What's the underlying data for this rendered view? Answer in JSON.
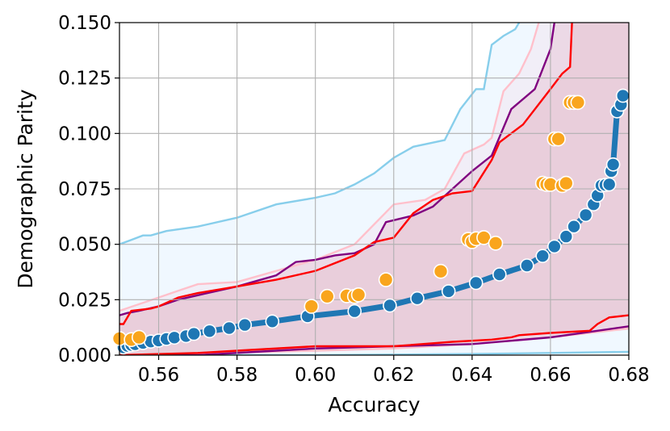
{
  "chart_data": {
    "type": "scatter",
    "title": "",
    "xlabel": "Accuracy",
    "ylabel": "Demographic Parity",
    "xlim": [
      0.55,
      0.68
    ],
    "ylim": [
      0.0,
      0.15
    ],
    "xticks": [
      "0.56",
      "0.58",
      "0.60",
      "0.62",
      "0.64",
      "0.66",
      "0.68"
    ],
    "yticks": [
      "0.000",
      "0.025",
      "0.050",
      "0.075",
      "0.100",
      "0.125",
      "0.150"
    ],
    "grid": true,
    "legend": "none",
    "bands": [
      {
        "color": "#87ceeb",
        "fill": "#f0f8ff",
        "upper": [
          [
            0.55,
            0.05
          ],
          [
            0.553,
            0.052
          ],
          [
            0.556,
            0.054
          ],
          [
            0.558,
            0.054
          ],
          [
            0.562,
            0.056
          ],
          [
            0.57,
            0.058
          ],
          [
            0.58,
            0.062
          ],
          [
            0.59,
            0.068
          ],
          [
            0.6,
            0.071
          ],
          [
            0.605,
            0.073
          ],
          [
            0.61,
            0.077
          ],
          [
            0.615,
            0.082
          ],
          [
            0.62,
            0.089
          ],
          [
            0.625,
            0.094
          ],
          [
            0.633,
            0.097
          ],
          [
            0.637,
            0.111
          ],
          [
            0.641,
            0.12
          ],
          [
            0.643,
            0.12
          ],
          [
            0.645,
            0.14
          ],
          [
            0.648,
            0.144
          ],
          [
            0.651,
            0.147
          ],
          [
            0.652,
            0.15
          ]
        ],
        "lower": [
          [
            0.55,
            0.0
          ],
          [
            0.6,
            0.0
          ],
          [
            0.64,
            0.0005
          ],
          [
            0.66,
            0.001
          ],
          [
            0.68,
            0.0015
          ]
        ]
      },
      {
        "color": "#ffc0cb",
        "fill": "#f3e6f0",
        "upper": [
          [
            0.55,
            0.02
          ],
          [
            0.56,
            0.026
          ],
          [
            0.565,
            0.029
          ],
          [
            0.57,
            0.032
          ],
          [
            0.58,
            0.033
          ],
          [
            0.59,
            0.038
          ],
          [
            0.6,
            0.043
          ],
          [
            0.61,
            0.05
          ],
          [
            0.62,
            0.068
          ],
          [
            0.628,
            0.07
          ],
          [
            0.633,
            0.075
          ],
          [
            0.638,
            0.091
          ],
          [
            0.643,
            0.095
          ],
          [
            0.645,
            0.098
          ],
          [
            0.648,
            0.119
          ],
          [
            0.652,
            0.127
          ],
          [
            0.655,
            0.138
          ],
          [
            0.657,
            0.15
          ]
        ],
        "lower": [
          [
            0.55,
            0.0
          ],
          [
            0.6,
            0.002
          ],
          [
            0.62,
            0.003
          ],
          [
            0.64,
            0.005
          ],
          [
            0.66,
            0.008
          ],
          [
            0.68,
            0.012
          ]
        ]
      },
      {
        "color": "#800080",
        "fill": "#e8c8d8",
        "upper": [
          [
            0.55,
            0.018
          ],
          [
            0.552,
            0.019
          ],
          [
            0.555,
            0.02
          ],
          [
            0.56,
            0.022
          ],
          [
            0.565,
            0.025
          ],
          [
            0.57,
            0.027
          ],
          [
            0.58,
            0.031
          ],
          [
            0.59,
            0.036
          ],
          [
            0.595,
            0.042
          ],
          [
            0.6,
            0.043
          ],
          [
            0.605,
            0.045
          ],
          [
            0.61,
            0.046
          ],
          [
            0.615,
            0.05
          ],
          [
            0.618,
            0.06
          ],
          [
            0.625,
            0.063
          ],
          [
            0.63,
            0.067
          ],
          [
            0.64,
            0.083
          ],
          [
            0.645,
            0.09
          ],
          [
            0.65,
            0.111
          ],
          [
            0.656,
            0.12
          ],
          [
            0.66,
            0.138
          ],
          [
            0.661,
            0.15
          ]
        ],
        "lower": [
          [
            0.55,
            0.0
          ],
          [
            0.57,
            0.0
          ],
          [
            0.59,
            0.002
          ],
          [
            0.6,
            0.003
          ],
          [
            0.62,
            0.004
          ],
          [
            0.64,
            0.005
          ],
          [
            0.66,
            0.008
          ],
          [
            0.672,
            0.011
          ],
          [
            0.68,
            0.013
          ]
        ]
      },
      {
        "color": "#ff0000",
        "fill": "#e8c4d2",
        "upper": [
          [
            0.55,
            0.014
          ],
          [
            0.551,
            0.014
          ],
          [
            0.553,
            0.02
          ],
          [
            0.558,
            0.021
          ],
          [
            0.56,
            0.022
          ],
          [
            0.565,
            0.026
          ],
          [
            0.57,
            0.028
          ],
          [
            0.58,
            0.031
          ],
          [
            0.59,
            0.034
          ],
          [
            0.6,
            0.038
          ],
          [
            0.61,
            0.045
          ],
          [
            0.615,
            0.051
          ],
          [
            0.62,
            0.053
          ],
          [
            0.625,
            0.064
          ],
          [
            0.63,
            0.07
          ],
          [
            0.635,
            0.073
          ],
          [
            0.64,
            0.074
          ],
          [
            0.645,
            0.088
          ],
          [
            0.647,
            0.096
          ],
          [
            0.653,
            0.104
          ],
          [
            0.66,
            0.12
          ],
          [
            0.663,
            0.127
          ],
          [
            0.665,
            0.13
          ],
          [
            0.6655,
            0.15
          ]
        ],
        "lower": [
          [
            0.55,
            0.0
          ],
          [
            0.57,
            0.001
          ],
          [
            0.58,
            0.002
          ],
          [
            0.6,
            0.004
          ],
          [
            0.62,
            0.004
          ],
          [
            0.635,
            0.006
          ],
          [
            0.645,
            0.007
          ],
          [
            0.65,
            0.008
          ],
          [
            0.652,
            0.009
          ],
          [
            0.66,
            0.01
          ],
          [
            0.67,
            0.011
          ],
          [
            0.672,
            0.014
          ],
          [
            0.675,
            0.017
          ],
          [
            0.68,
            0.018
          ]
        ]
      }
    ],
    "series": [
      {
        "type": "line",
        "color": "#1f77b4",
        "x": [
          0.551,
          0.552,
          0.553,
          0.554,
          0.556,
          0.558,
          0.56,
          0.562,
          0.564,
          0.567,
          0.569,
          0.573,
          0.578,
          0.582,
          0.589,
          0.598,
          0.61,
          0.619,
          0.626,
          0.634,
          0.641,
          0.647,
          0.654,
          0.658,
          0.661,
          0.664,
          0.666,
          0.669,
          0.671,
          0.672,
          0.673,
          0.674,
          0.675,
          0.6755,
          0.676,
          0.677,
          0.678,
          0.6785
        ],
        "y": [
          0.0035,
          0.0042,
          0.0046,
          0.0049,
          0.0055,
          0.0061,
          0.0066,
          0.0073,
          0.0079,
          0.0086,
          0.0096,
          0.0108,
          0.0122,
          0.0136,
          0.0152,
          0.0175,
          0.0198,
          0.0224,
          0.0256,
          0.0288,
          0.0326,
          0.0364,
          0.0404,
          0.0447,
          0.049,
          0.0535,
          0.058,
          0.0632,
          0.068,
          0.072,
          0.0765,
          0.0768,
          0.077,
          0.083,
          0.086,
          0.11,
          0.113,
          0.117
        ]
      },
      {
        "type": "scatter",
        "color": "#f9a51d",
        "x": [
          0.55,
          0.553,
          0.555,
          0.599,
          0.603,
          0.608,
          0.61,
          0.611,
          0.618,
          0.632,
          0.639,
          0.64,
          0.641,
          0.643,
          0.646,
          0.658,
          0.659,
          0.66,
          0.661,
          0.662,
          0.663,
          0.664,
          0.665,
          0.666,
          0.667
        ],
        "y": [
          0.0075,
          0.007,
          0.008,
          0.022,
          0.0265,
          0.0268,
          0.0265,
          0.0272,
          0.034,
          0.0378,
          0.0522,
          0.0512,
          0.0525,
          0.053,
          0.0505,
          0.0775,
          0.077,
          0.077,
          0.0975,
          0.0975,
          0.0765,
          0.0775,
          0.114,
          0.114,
          0.114
        ]
      }
    ]
  }
}
